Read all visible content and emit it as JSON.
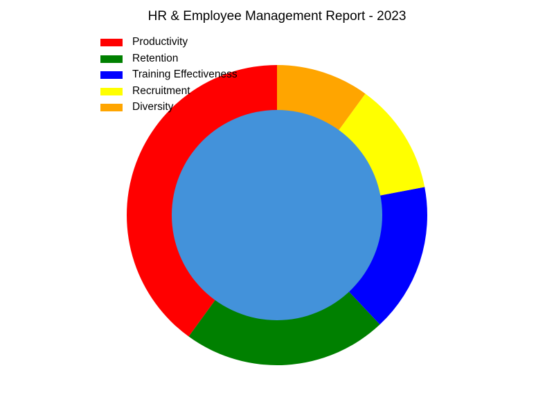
{
  "chart_data": {
    "type": "pie",
    "title": "HR & Employee Management Report - 2023",
    "categories": [
      "Productivity",
      "Retention",
      "Training Effectiveness",
      "Recruitment",
      "Diversity"
    ],
    "values": [
      40,
      22,
      16,
      12,
      10
    ],
    "colors": [
      "#ff0000",
      "#008000",
      "#0000ff",
      "#ffff00",
      "#ffa500"
    ],
    "center_color": "#4392da",
    "style": "donut",
    "start_angle_deg": 90,
    "direction": "counterclockwise",
    "legend_position": "top-left"
  }
}
